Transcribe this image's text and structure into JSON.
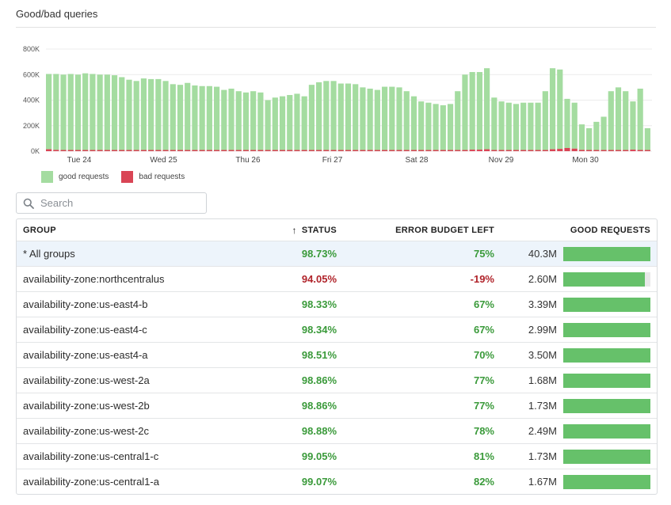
{
  "panel": {
    "title": "Good/bad queries"
  },
  "colors": {
    "good": "#a4dca0",
    "bad": "#d94555",
    "ok_text": "#3a9a3a",
    "bad_text": "#b0232a",
    "bar": "#66c16a"
  },
  "chart_data": {
    "type": "bar",
    "stacked": true,
    "y_ticks": [
      "0K",
      "200K",
      "400K",
      "600K",
      "800K"
    ],
    "ylim": [
      0,
      800000
    ],
    "x_tick_labels": [
      "Tue 24",
      "Wed 25",
      "Thu 26",
      "Fri 27",
      "Sat 28",
      "Nov 29",
      "Mon 30"
    ],
    "grid": true,
    "legend_position": "bottom-left",
    "series": [
      {
        "name": "good requests",
        "values": [
          605000,
          605000,
          600000,
          605000,
          600000,
          610000,
          605000,
          600000,
          600000,
          595000,
          580000,
          560000,
          550000,
          570000,
          565000,
          565000,
          550000,
          525000,
          520000,
          535000,
          515000,
          510000,
          510000,
          505000,
          480000,
          490000,
          470000,
          460000,
          470000,
          460000,
          400000,
          420000,
          430000,
          440000,
          450000,
          430000,
          520000,
          540000,
          550000,
          550000,
          530000,
          530000,
          525000,
          500000,
          490000,
          480000,
          505000,
          505000,
          500000,
          470000,
          430000,
          390000,
          380000,
          370000,
          360000,
          370000,
          470000,
          600000,
          620000,
          620000,
          650000,
          420000,
          390000,
          380000,
          370000,
          380000,
          380000,
          380000,
          470000,
          650000,
          640000,
          410000,
          380000,
          210000,
          180000,
          230000,
          270000,
          470000,
          500000,
          470000,
          390000,
          490000,
          180000
        ]
      },
      {
        "name": "bad requests",
        "values": [
          15000,
          10000,
          5000,
          5000,
          5000,
          5000,
          6000,
          5000,
          5000,
          4000,
          5000,
          5000,
          5000,
          5000,
          5000,
          5000,
          4000,
          4000,
          5000,
          5000,
          4000,
          4000,
          4000,
          6000,
          5000,
          5000,
          4000,
          4000,
          4000,
          4000,
          4000,
          4000,
          4000,
          4000,
          5000,
          5000,
          5000,
          5000,
          5000,
          5000,
          5000,
          4000,
          4000,
          4000,
          5000,
          5000,
          4000,
          4000,
          4000,
          4000,
          4000,
          4000,
          4000,
          4000,
          4000,
          4000,
          4000,
          6000,
          12000,
          12000,
          15000,
          5000,
          4000,
          4000,
          4000,
          4000,
          4000,
          4000,
          5000,
          15000,
          18000,
          25000,
          20000,
          10000,
          5000,
          5000,
          5000,
          5000,
          6000,
          6000,
          12000,
          8000,
          5000
        ]
      }
    ]
  },
  "search": {
    "placeholder": "Search",
    "value": ""
  },
  "table": {
    "headers": {
      "group": "GROUP",
      "status": "STATUS",
      "sort_arrow": "↑",
      "budget": "ERROR BUDGET LEFT",
      "good": "GOOD REQUESTS"
    },
    "rows": [
      {
        "group": "* All groups",
        "status": "98.73%",
        "budget": "75%",
        "good": "40.3M",
        "fill": 1.0,
        "bad": false,
        "selected": true
      },
      {
        "group": "availability-zone:northcentralus",
        "status": "94.05%",
        "budget": "-19%",
        "good": "2.60M",
        "fill": 0.94,
        "bad": true,
        "selected": false
      },
      {
        "group": "availability-zone:us-east4-b",
        "status": "98.33%",
        "budget": "67%",
        "good": "3.39M",
        "fill": 1.0,
        "bad": false,
        "selected": false
      },
      {
        "group": "availability-zone:us-east4-c",
        "status": "98.34%",
        "budget": "67%",
        "good": "2.99M",
        "fill": 1.0,
        "bad": false,
        "selected": false
      },
      {
        "group": "availability-zone:us-east4-a",
        "status": "98.51%",
        "budget": "70%",
        "good": "3.50M",
        "fill": 1.0,
        "bad": false,
        "selected": false
      },
      {
        "group": "availability-zone:us-west-2a",
        "status": "98.86%",
        "budget": "77%",
        "good": "1.68M",
        "fill": 1.0,
        "bad": false,
        "selected": false
      },
      {
        "group": "availability-zone:us-west-2b",
        "status": "98.86%",
        "budget": "77%",
        "good": "1.73M",
        "fill": 1.0,
        "bad": false,
        "selected": false
      },
      {
        "group": "availability-zone:us-west-2c",
        "status": "98.88%",
        "budget": "78%",
        "good": "2.49M",
        "fill": 1.0,
        "bad": false,
        "selected": false
      },
      {
        "group": "availability-zone:us-central1-c",
        "status": "99.05%",
        "budget": "81%",
        "good": "1.73M",
        "fill": 1.0,
        "bad": false,
        "selected": false
      },
      {
        "group": "availability-zone:us-central1-a",
        "status": "99.07%",
        "budget": "82%",
        "good": "1.67M",
        "fill": 1.0,
        "bad": false,
        "selected": false
      }
    ]
  },
  "icons": {
    "search": "search-icon"
  }
}
